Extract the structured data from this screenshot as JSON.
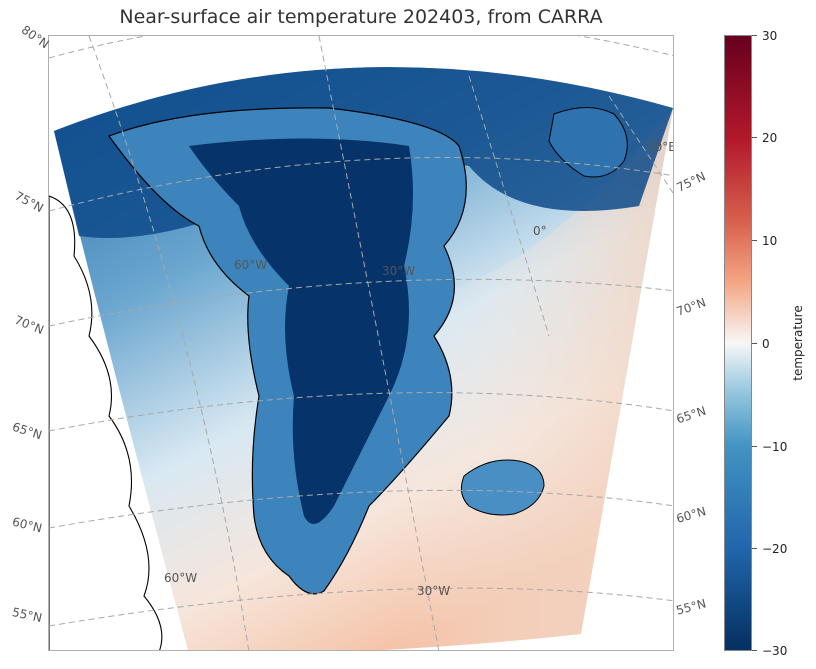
{
  "title": "Near-surface air temperature 202403, from CARRA",
  "colorbar": {
    "label": "temperature",
    "ticks": [
      "30",
      "20",
      "10",
      "0",
      "−10",
      "−20",
      "−30"
    ],
    "range": [
      -30,
      30
    ],
    "colormap": "RdBu_r"
  },
  "map": {
    "latitude_labels": [
      "80°N",
      "75°N",
      "70°N",
      "65°N",
      "60°N",
      "55°N"
    ],
    "latitude_labels_right": [
      "75°N",
      "70°N",
      "65°N",
      "60°N",
      "55°N"
    ],
    "longitude_labels": [
      "60°W",
      "30°W",
      "0°",
      "30°E"
    ],
    "interior_labels": [
      "60°W",
      "30°W"
    ],
    "colors": {
      "cold": "#053061",
      "neutral": "#f7f7f7",
      "warm": "#f4a582"
    }
  }
}
